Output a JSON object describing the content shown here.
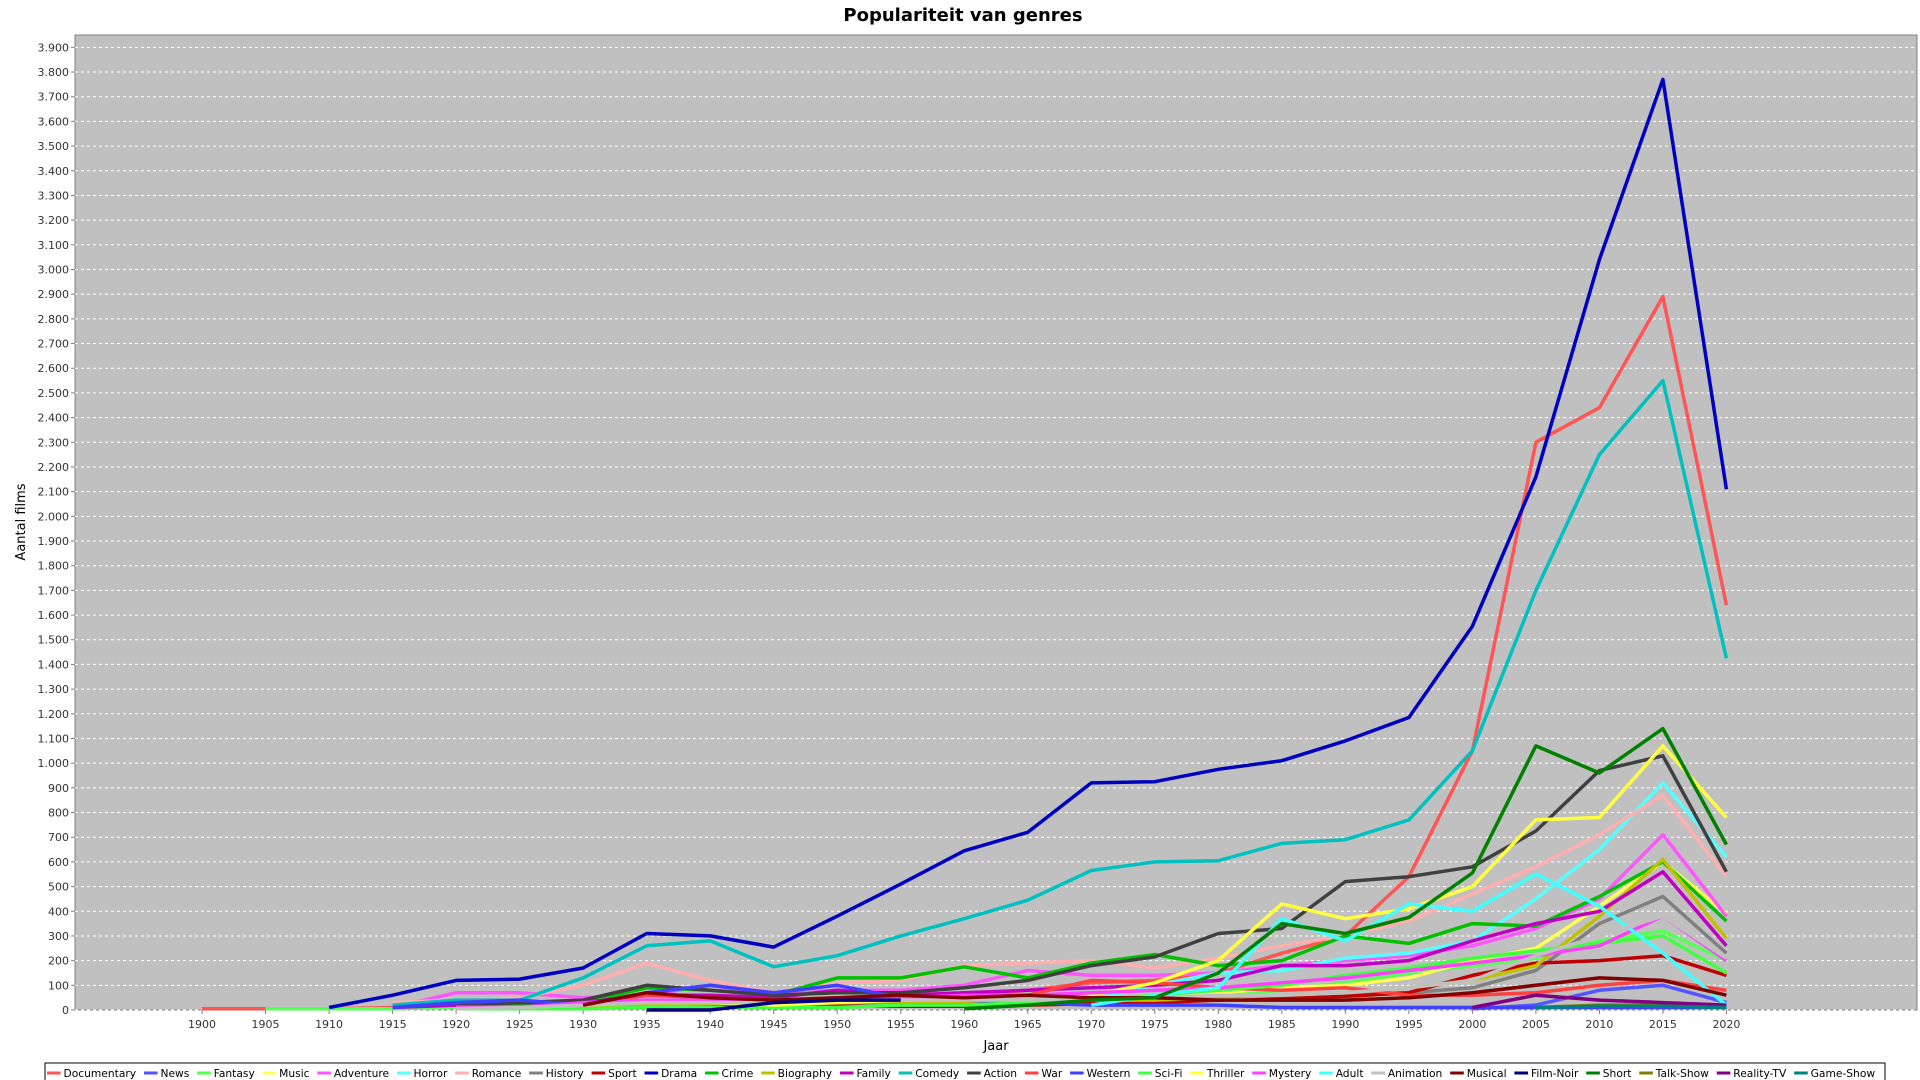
{
  "chart_data": {
    "type": "line",
    "title": "Populariteit van genres",
    "xlabel": "Jaar",
    "ylabel": "Aantal films",
    "x": [
      1900,
      1905,
      1910,
      1915,
      1920,
      1925,
      1930,
      1935,
      1940,
      1945,
      1950,
      1955,
      1960,
      1965,
      1970,
      1975,
      1980,
      1985,
      1990,
      1995,
      2000,
      2005,
      2010,
      2015,
      2020
    ],
    "xlim": [
      1890,
      2035
    ],
    "ylim": [
      0,
      3950
    ],
    "yticks": [
      0,
      100,
      200,
      300,
      400,
      500,
      600,
      700,
      800,
      900,
      1000,
      1100,
      1200,
      1300,
      1400,
      1500,
      1600,
      1700,
      1800,
      1900,
      2000,
      2100,
      2200,
      2300,
      2400,
      2500,
      2600,
      2700,
      2800,
      2900,
      3000,
      3100,
      3200,
      3300,
      3400,
      3500,
      3600,
      3700,
      3800,
      3900
    ],
    "ytick_labels": [
      "0",
      "100",
      "200",
      "300",
      "400",
      "500",
      "600",
      "700",
      "800",
      "900",
      "1.000",
      "1.100",
      "1.200",
      "1.300",
      "1.400",
      "1.500",
      "1.600",
      "1.700",
      "1.800",
      "1.900",
      "2.000",
      "2.100",
      "2.200",
      "2.300",
      "2.400",
      "2.500",
      "2.600",
      "2.700",
      "2.800",
      "2.900",
      "3.000",
      "3.100",
      "3.200",
      "3.300",
      "3.400",
      "3.500",
      "3.600",
      "3.700",
      "3.800",
      "3.900"
    ],
    "grid": true,
    "legend_position": "bottom",
    "plot_background": "#c0c0c0",
    "series": [
      {
        "name": "Documentary",
        "color": "#ff5555",
        "values": [
          5,
          5,
          5,
          10,
          15,
          20,
          20,
          40,
          30,
          30,
          40,
          50,
          60,
          80,
          110,
          120,
          150,
          230,
          300,
          540,
          1050,
          2300,
          2440,
          2890,
          1640
        ]
      },
      {
        "name": "News",
        "color": "#5555ff",
        "values": [
          null,
          null,
          null,
          null,
          null,
          null,
          null,
          null,
          null,
          null,
          null,
          null,
          null,
          null,
          null,
          null,
          null,
          null,
          null,
          null,
          5,
          20,
          80,
          100,
          30
        ]
      },
      {
        "name": "Fantasy",
        "color": "#55ff55",
        "values": [
          null,
          5,
          5,
          5,
          10,
          15,
          20,
          30,
          30,
          20,
          20,
          20,
          25,
          30,
          40,
          50,
          60,
          80,
          110,
          150,
          180,
          210,
          280,
          320,
          200
        ]
      },
      {
        "name": "Music",
        "color": "#ffff55",
        "values": [
          null,
          null,
          null,
          null,
          5,
          5,
          30,
          30,
          30,
          30,
          30,
          30,
          30,
          30,
          40,
          60,
          70,
          90,
          100,
          130,
          200,
          250,
          420,
          600,
          390
        ]
      },
      {
        "name": "Adventure",
        "color": "#ff55ff",
        "values": [
          null,
          null,
          null,
          10,
          70,
          70,
          50,
          60,
          100,
          60,
          80,
          80,
          100,
          160,
          140,
          140,
          150,
          180,
          200,
          220,
          260,
          330,
          450,
          710,
          380
        ]
      },
      {
        "name": "Horror",
        "color": "#55ffff",
        "values": [
          null,
          null,
          null,
          null,
          5,
          5,
          10,
          20,
          15,
          15,
          20,
          20,
          20,
          30,
          40,
          100,
          150,
          160,
          210,
          230,
          280,
          450,
          650,
          920,
          620
        ]
      },
      {
        "name": "Romance",
        "color": "#ffafaf",
        "values": [
          null,
          null,
          null,
          30,
          40,
          50,
          100,
          190,
          120,
          70,
          110,
          120,
          180,
          190,
          200,
          170,
          210,
          260,
          300,
          360,
          470,
          580,
          710,
          870,
          540
        ]
      },
      {
        "name": "History",
        "color": "#808080",
        "values": [
          null,
          null,
          null,
          null,
          5,
          5,
          10,
          20,
          30,
          20,
          25,
          30,
          30,
          30,
          40,
          50,
          50,
          60,
          60,
          70,
          90,
          160,
          350,
          460,
          230
        ]
      },
      {
        "name": "Sport",
        "color": "#c00000",
        "values": [
          null,
          null,
          null,
          null,
          null,
          null,
          10,
          20,
          15,
          10,
          15,
          15,
          15,
          20,
          25,
          30,
          40,
          50,
          55,
          70,
          140,
          190,
          200,
          220,
          140
        ]
      },
      {
        "name": "Drama",
        "color": "#0000c0",
        "values": [
          null,
          null,
          10,
          60,
          120,
          125,
          170,
          310,
          300,
          255,
          380,
          510,
          645,
          720,
          920,
          925,
          975,
          1010,
          1090,
          1185,
          1555,
          2160,
          3040,
          3770,
          2110
        ]
      },
      {
        "name": "Crime",
        "color": "#00c000",
        "values": [
          null,
          null,
          null,
          null,
          20,
          20,
          30,
          90,
          80,
          60,
          130,
          130,
          175,
          130,
          190,
          225,
          180,
          200,
          300,
          270,
          350,
          340,
          460,
          600,
          360
        ]
      },
      {
        "name": "Biography",
        "color": "#c0c000",
        "values": [
          null,
          null,
          null,
          null,
          5,
          10,
          10,
          20,
          25,
          30,
          30,
          35,
          35,
          40,
          40,
          40,
          50,
          60,
          70,
          90,
          120,
          180,
          380,
          610,
          290
        ]
      },
      {
        "name": "Family",
        "color": "#c000c0",
        "values": [
          null,
          null,
          null,
          10,
          20,
          30,
          30,
          60,
          60,
          50,
          80,
          60,
          70,
          80,
          90,
          100,
          120,
          180,
          180,
          200,
          280,
          350,
          400,
          560,
          260
        ]
      },
      {
        "name": "Comedy",
        "color": "#00c0c0",
        "values": [
          null,
          null,
          null,
          20,
          40,
          40,
          130,
          260,
          280,
          175,
          220,
          300,
          370,
          445,
          565,
          600,
          605,
          675,
          690,
          770,
          1050,
          1700,
          2250,
          2550,
          1425
        ]
      },
      {
        "name": "Action",
        "color": "#404040",
        "values": [
          null,
          null,
          null,
          null,
          20,
          30,
          40,
          100,
          80,
          60,
          70,
          70,
          90,
          120,
          180,
          215,
          310,
          330,
          520,
          540,
          580,
          725,
          970,
          1030,
          560
        ]
      },
      {
        "name": "War",
        "color": "#ff4040",
        "values": [
          null,
          null,
          null,
          null,
          10,
          10,
          20,
          60,
          50,
          40,
          40,
          50,
          50,
          60,
          120,
          110,
          90,
          80,
          90,
          60,
          60,
          70,
          100,
          120,
          80
        ]
      },
      {
        "name": "Western",
        "color": "#4040ff",
        "values": [
          null,
          null,
          null,
          10,
          30,
          40,
          20,
          70,
          100,
          70,
          100,
          50,
          40,
          30,
          20,
          20,
          20,
          10,
          10,
          10,
          10,
          10,
          10,
          10,
          10
        ]
      },
      {
        "name": "Sci-Fi",
        "color": "#40ff40",
        "values": [
          null,
          null,
          null,
          null,
          5,
          5,
          5,
          10,
          10,
          10,
          10,
          20,
          20,
          30,
          40,
          60,
          80,
          100,
          140,
          170,
          210,
          240,
          270,
          300,
          150
        ]
      },
      {
        "name": "Thriller",
        "color": "#ffff40",
        "values": [
          null,
          null,
          null,
          null,
          10,
          10,
          20,
          30,
          30,
          20,
          30,
          40,
          50,
          60,
          60,
          110,
          200,
          430,
          370,
          410,
          500,
          770,
          780,
          1070,
          780
        ]
      },
      {
        "name": "Mystery",
        "color": "#ff40ff",
        "values": [
          null,
          null,
          null,
          null,
          10,
          10,
          30,
          40,
          40,
          30,
          50,
          50,
          60,
          60,
          70,
          80,
          90,
          110,
          130,
          160,
          190,
          220,
          260,
          380,
          200
        ]
      },
      {
        "name": "Adult",
        "color": "#40ffff",
        "values": [
          null,
          null,
          null,
          null,
          null,
          null,
          null,
          null,
          null,
          null,
          null,
          null,
          null,
          null,
          20,
          60,
          90,
          370,
          280,
          430,
          400,
          550,
          420,
          230,
          20
        ]
      },
      {
        "name": "Animation",
        "color": "#c0c0c0",
        "values": [
          null,
          null,
          null,
          null,
          5,
          10,
          20,
          30,
          30,
          30,
          40,
          40,
          40,
          40,
          50,
          50,
          60,
          60,
          70,
          90,
          120,
          220,
          300,
          380,
          210
        ]
      },
      {
        "name": "Musical",
        "color": "#800000",
        "values": [
          null,
          null,
          null,
          null,
          null,
          null,
          20,
          70,
          50,
          40,
          50,
          60,
          50,
          60,
          50,
          50,
          40,
          40,
          40,
          50,
          70,
          100,
          130,
          120,
          60
        ]
      },
      {
        "name": "Film-Noir",
        "color": "#000080",
        "values": [
          null,
          null,
          null,
          null,
          null,
          null,
          null,
          0,
          0,
          30,
          40,
          40,
          null,
          null,
          null,
          null,
          null,
          null,
          null,
          null,
          null,
          null,
          null,
          null,
          null
        ]
      },
      {
        "name": "Short",
        "color": "#008000",
        "values": [
          null,
          null,
          null,
          null,
          null,
          null,
          null,
          null,
          null,
          null,
          null,
          null,
          5,
          20,
          40,
          50,
          150,
          350,
          310,
          375,
          555,
          1070,
          960,
          1140,
          670
        ]
      },
      {
        "name": "Talk-Show",
        "color": "#808000",
        "values": [
          null,
          null,
          null,
          null,
          null,
          null,
          null,
          null,
          null,
          null,
          null,
          null,
          null,
          null,
          null,
          null,
          null,
          null,
          null,
          null,
          null,
          10,
          20,
          20,
          15
        ]
      },
      {
        "name": "Reality-TV",
        "color": "#800080",
        "values": [
          null,
          null,
          null,
          null,
          null,
          null,
          null,
          null,
          null,
          null,
          null,
          null,
          null,
          null,
          null,
          null,
          null,
          null,
          null,
          null,
          10,
          60,
          40,
          30,
          20
        ]
      },
      {
        "name": "Game-Show",
        "color": "#008080",
        "values": [
          null,
          null,
          null,
          null,
          null,
          null,
          null,
          null,
          null,
          null,
          null,
          null,
          null,
          null,
          null,
          null,
          null,
          null,
          null,
          null,
          null,
          10,
          15,
          15,
          10
        ]
      }
    ]
  }
}
